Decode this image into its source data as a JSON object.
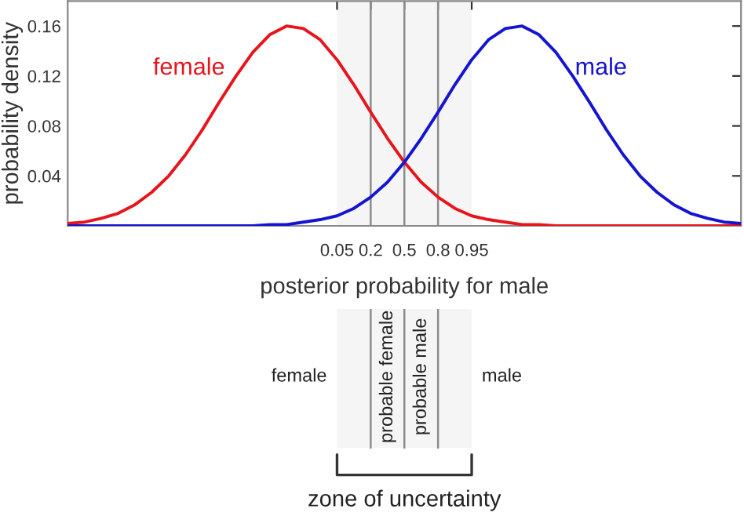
{
  "chart_data": {
    "type": "line",
    "xlabel": "posterior probability for male",
    "ylabel": "probability density",
    "categories": [
      null,
      null,
      null,
      null,
      null,
      null,
      null,
      null,
      null,
      null,
      null,
      null,
      null,
      null,
      null,
      null,
      "0.05",
      null,
      "0.2",
      null,
      "0.5",
      null,
      "0.8",
      null,
      "0.95",
      null,
      null,
      null,
      null,
      null,
      null,
      null,
      null,
      null,
      null,
      null,
      null,
      null,
      null,
      null,
      null
    ],
    "ylim": [
      0,
      0.18
    ],
    "yticks": [
      0.04,
      0.08,
      0.12,
      0.16
    ],
    "series": [
      {
        "name": "female",
        "color": "#e8141c",
        "values": [
          0.002,
          0.003,
          0.006,
          0.01,
          0.017,
          0.027,
          0.04,
          0.057,
          0.077,
          0.099,
          0.12,
          0.139,
          0.153,
          0.16,
          0.158,
          0.149,
          0.133,
          0.113,
          0.091,
          0.07,
          0.051,
          0.035,
          0.023,
          0.014,
          0.008,
          0.005,
          0.003,
          0.001,
          0.001,
          0,
          0,
          0,
          0,
          0,
          0,
          0,
          0,
          0,
          0,
          0,
          0
        ]
      },
      {
        "name": "male",
        "color": "#1414d2",
        "values": [
          0,
          0,
          0,
          0,
          0,
          0,
          0,
          0,
          0,
          0,
          0,
          0,
          0.001,
          0.001,
          0.003,
          0.005,
          0.008,
          0.014,
          0.023,
          0.035,
          0.051,
          0.07,
          0.091,
          0.113,
          0.133,
          0.149,
          0.158,
          0.16,
          0.153,
          0.139,
          0.12,
          0.099,
          0.077,
          0.057,
          0.04,
          0.027,
          0.017,
          0.01,
          0.006,
          0.003,
          0.002
        ]
      }
    ],
    "bands": [
      {
        "axis": "x",
        "from": "0.05",
        "to": "0.95",
        "color": "#f5f5f5"
      }
    ],
    "ref_lines": [
      {
        "axis": "x",
        "value": "0.2",
        "color": "#8c8c8c"
      },
      {
        "axis": "x",
        "value": "0.5",
        "color": "#8c8c8c"
      },
      {
        "axis": "x",
        "value": "0.8",
        "color": "#8c8c8c"
      }
    ],
    "annotations": [
      "female",
      "probable female",
      "probable male",
      "male",
      "zone of uncertainty"
    ],
    "legend": false,
    "grid": false,
    "line_style": "solid",
    "marker": "none"
  }
}
